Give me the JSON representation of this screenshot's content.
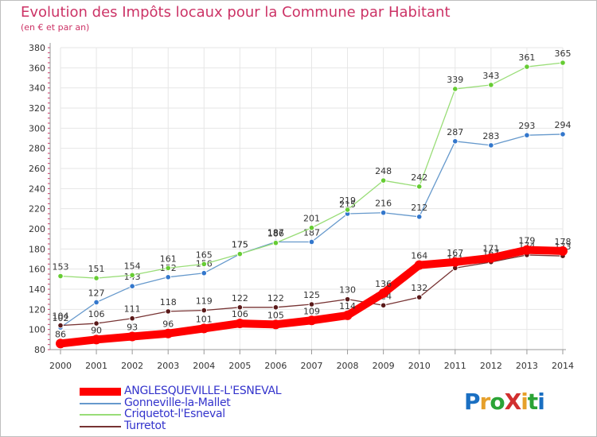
{
  "header": {
    "title": "Evolution des Impôts locaux pour la Commune par Habitant",
    "subtitle": "(en € et par an)"
  },
  "logo": {
    "text": "ProXiti",
    "letters": [
      "P",
      "r",
      "o",
      "X",
      "i",
      "t",
      "i"
    ]
  },
  "colors": {
    "title": "#cc3366",
    "legend_text": "#3333cc",
    "grid": "#e6e6e6",
    "axis": "#999999",
    "tick_text": "#333333",
    "logo": [
      "#1a6fc2",
      "#e6a02b",
      "#2ba336",
      "#d12f2f",
      "#e6a02b",
      "#2ba336",
      "#1a6fc2"
    ]
  },
  "chart_data": {
    "type": "line",
    "x": [
      2000,
      2001,
      2002,
      2003,
      2004,
      2005,
      2006,
      2007,
      2008,
      2009,
      2010,
      2011,
      2012,
      2013,
      2014
    ],
    "xticks": [
      "2000",
      "2001",
      "2002",
      "2003",
      "2004",
      "2005",
      "2006",
      "2007",
      "2008",
      "2009",
      "2010",
      "2011",
      "2012",
      "2013",
      "2014"
    ],
    "ylim": [
      80,
      380
    ],
    "yticks": [
      80,
      100,
      120,
      140,
      160,
      180,
      200,
      220,
      240,
      260,
      280,
      300,
      320,
      340,
      360,
      380
    ],
    "grid": true,
    "legend_position": "bottom-left",
    "series": [
      {
        "name": "Gonneville-la-Mallet",
        "color": "#6699cc",
        "marker": "#3377cc",
        "values": [
          102,
          127,
          143,
          152,
          156,
          175,
          187,
          187,
          215,
          216,
          212,
          287,
          283,
          293,
          294
        ]
      },
      {
        "name": "Criquetot-l'Esneval",
        "color": "#99dd77",
        "marker": "#66cc33",
        "values": [
          153,
          151,
          154,
          161,
          165,
          175,
          186,
          201,
          219,
          248,
          242,
          339,
          343,
          361,
          365
        ]
      },
      {
        "name": "Turretot",
        "color": "#773333",
        "marker": "#5a1a1a",
        "values": [
          104,
          106,
          111,
          118,
          119,
          122,
          122,
          125,
          130,
          124,
          132,
          161,
          167,
          174,
          173
        ]
      },
      {
        "name": "ANGLESQUEVILLE-L'ESNEVAL",
        "color": "#ff0000",
        "marker": "#ff0000",
        "bold": true,
        "values": [
          86,
          90,
          93,
          96,
          101,
          106,
          105,
          109,
          114,
          136,
          164,
          167,
          171,
          179,
          178
        ]
      }
    ],
    "legend": [
      "ANGLESQUEVILLE-L'ESNEVAL",
      "Gonneville-la-Mallet",
      "Criquetot-l'Esneval",
      "Turretot"
    ]
  }
}
